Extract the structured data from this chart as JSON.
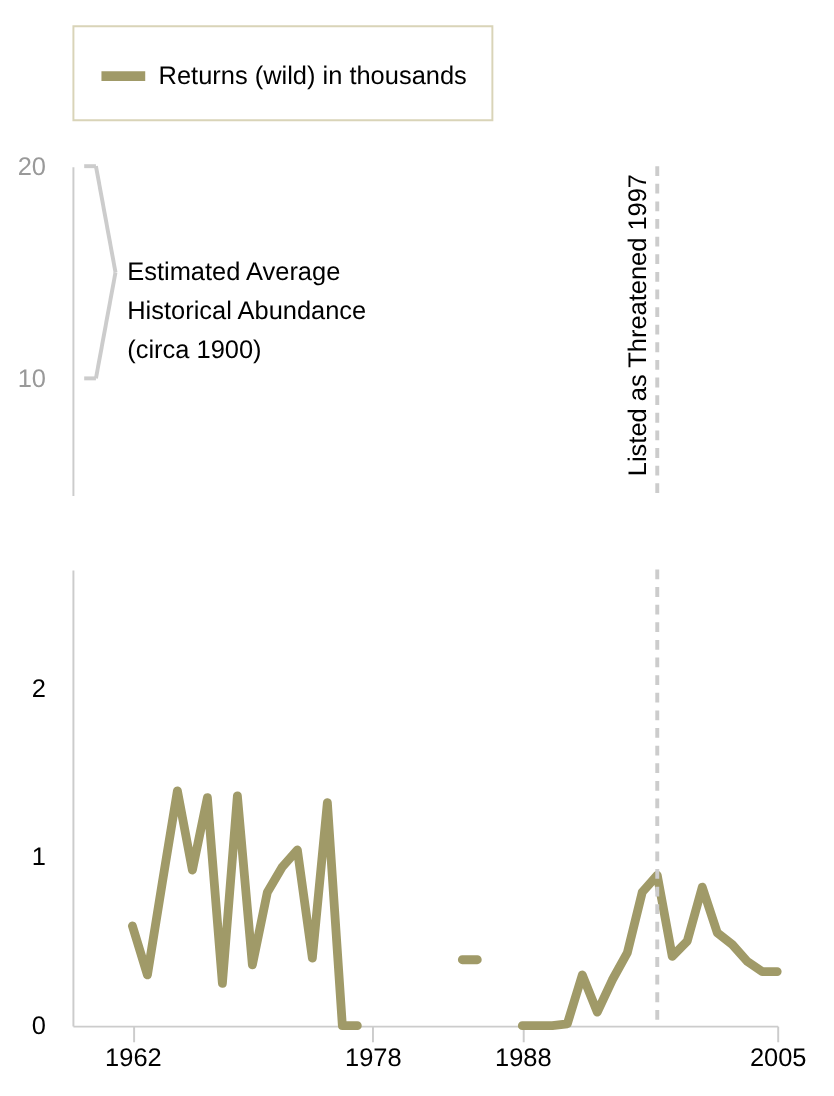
{
  "chart_data": [
    {
      "type": "line",
      "xlim": [
        1958,
        2005
      ],
      "ylim": [
        4.5,
        20
      ],
      "yticks": [
        10,
        20
      ],
      "tick_labels": "y",
      "annotations": [
        "Estimated Average\nHistorical Abundance\n(circa 1900)"
      ],
      "ref_lines": [
        {
          "axis": "x",
          "value": 1997,
          "label": "Listed as Threatened 1997",
          "color": "#cccccc",
          "line_style": "dashed"
        }
      ],
      "grid": false
    },
    {
      "type": "line",
      "x": [
        1962,
        1963,
        1964,
        1965,
        1966,
        1967,
        1968,
        1969,
        1970,
        1971,
        1972,
        1973,
        1974,
        1975,
        1976,
        1977,
        1978,
        1979,
        1980,
        1981,
        1982,
        1983,
        1984,
        1985,
        1986,
        1987,
        1988,
        1989,
        1990,
        1991,
        1992,
        1993,
        1994,
        1995,
        1996,
        1997,
        1998,
        1999,
        2000,
        2001,
        2002,
        2003,
        2004,
        2005
      ],
      "series": [
        {
          "name": "Returns (wild) in thousands",
          "color": "#a09a68",
          "values": [
            0.59,
            0.3,
            0.85,
            1.39,
            0.92,
            1.35,
            0.25,
            1.36,
            0.36,
            0.79,
            0.94,
            1.04,
            0.4,
            1.32,
            0,
            0,
            null,
            null,
            null,
            null,
            null,
            null,
            0.39,
            0.39,
            null,
            null,
            0,
            0,
            0,
            0.01,
            0.3,
            0.08,
            0.27,
            0.43,
            0.79,
            0.89,
            0.41,
            0.5,
            0.82,
            0.55,
            0.48,
            0.38,
            0.32,
            0.32
          ]
        }
      ],
      "xlim": [
        1958,
        2005
      ],
      "xticks": [
        1962,
        1978,
        1988,
        2005
      ],
      "ylim": [
        0,
        2.7
      ],
      "yticks": [
        0,
        1,
        2
      ],
      "ref_lines": [
        {
          "axis": "x",
          "value": 1997,
          "color": "#cccccc",
          "line_style": "dashed"
        }
      ],
      "grid": false,
      "legend": "top",
      "marker": "none",
      "line_style": "solid"
    }
  ]
}
